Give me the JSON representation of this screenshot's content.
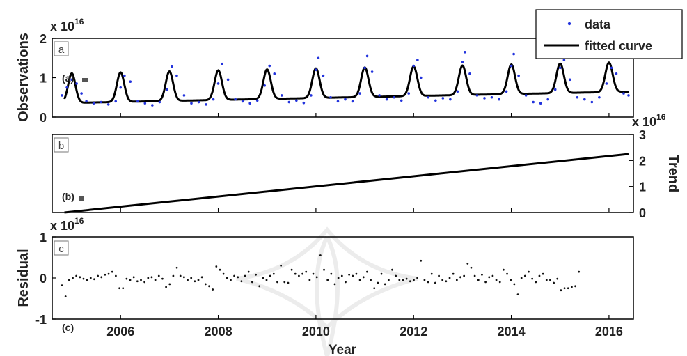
{
  "figure": {
    "x_axis_label": "Year",
    "x_ticks": [
      "2006",
      "2008",
      "2010",
      "2012",
      "2014",
      "2016"
    ],
    "x_tick_values": [
      2006,
      2008,
      2010,
      2012,
      2014,
      2016
    ],
    "x_range": [
      2004.6,
      2016.5
    ],
    "annotations": [
      "(a)",
      "(b)",
      "(c)"
    ]
  },
  "chart_data": [
    {
      "type": "scatter",
      "panel_label": "a",
      "ylabel": "Observations",
      "scale_label": "x 10",
      "scale_exp": "16",
      "y_multiplier": 1e+16,
      "ylim": [
        0,
        2
      ],
      "y_ticks": [
        "0",
        "1",
        "2"
      ],
      "y_tick_values": [
        0,
        1,
        2
      ],
      "legend_position": "top-right",
      "series": [
        {
          "name": "data",
          "marker": "dot",
          "color": "#2233dd"
        },
        {
          "name": "fitted curve",
          "marker": "line",
          "color": "#000000"
        }
      ],
      "model": {
        "base": 0.35,
        "trend_per_year": 0.025,
        "peak_amp": 0.75,
        "peak_phase": 0.0,
        "peak_width": 0.075
      },
      "data_points": [
        [
          2004.8,
          0.55
        ],
        [
          2004.9,
          0.75
        ],
        [
          2005.0,
          0.95
        ],
        [
          2005.1,
          0.85
        ],
        [
          2005.2,
          0.6
        ],
        [
          2005.3,
          0.4
        ],
        [
          2005.45,
          0.35
        ],
        [
          2005.6,
          0.38
        ],
        [
          2005.75,
          0.32
        ],
        [
          2005.9,
          0.4
        ],
        [
          2006.0,
          0.75
        ],
        [
          2006.08,
          1.05
        ],
        [
          2006.2,
          0.9
        ],
        [
          2006.35,
          0.4
        ],
        [
          2006.5,
          0.35
        ],
        [
          2006.65,
          0.3
        ],
        [
          2006.8,
          0.38
        ],
        [
          2006.95,
          0.7
        ],
        [
          2007.05,
          1.28
        ],
        [
          2007.15,
          1.05
        ],
        [
          2007.3,
          0.55
        ],
        [
          2007.45,
          0.35
        ],
        [
          2007.6,
          0.38
        ],
        [
          2007.75,
          0.32
        ],
        [
          2007.9,
          0.45
        ],
        [
          2008.0,
          0.85
        ],
        [
          2008.08,
          1.35
        ],
        [
          2008.2,
          0.95
        ],
        [
          2008.35,
          0.45
        ],
        [
          2008.5,
          0.4
        ],
        [
          2008.65,
          0.35
        ],
        [
          2008.8,
          0.42
        ],
        [
          2008.95,
          0.8
        ],
        [
          2009.05,
          1.3
        ],
        [
          2009.15,
          1.1
        ],
        [
          2009.3,
          0.55
        ],
        [
          2009.45,
          0.38
        ],
        [
          2009.6,
          0.42
        ],
        [
          2009.75,
          0.36
        ],
        [
          2009.9,
          0.55
        ],
        [
          2010.0,
          1.2
        ],
        [
          2010.05,
          1.5
        ],
        [
          2010.15,
          1.05
        ],
        [
          2010.3,
          0.5
        ],
        [
          2010.45,
          0.4
        ],
        [
          2010.6,
          0.45
        ],
        [
          2010.75,
          0.4
        ],
        [
          2010.9,
          0.6
        ],
        [
          2011.0,
          1.25
        ],
        [
          2011.05,
          1.55
        ],
        [
          2011.15,
          1.15
        ],
        [
          2011.3,
          0.55
        ],
        [
          2011.45,
          0.45
        ],
        [
          2011.6,
          0.5
        ],
        [
          2011.75,
          0.42
        ],
        [
          2011.9,
          0.6
        ],
        [
          2012.0,
          1.3
        ],
        [
          2012.08,
          1.45
        ],
        [
          2012.15,
          1.0
        ],
        [
          2012.3,
          0.5
        ],
        [
          2012.45,
          0.42
        ],
        [
          2012.6,
          0.48
        ],
        [
          2012.75,
          0.45
        ],
        [
          2012.9,
          0.65
        ],
        [
          2013.0,
          1.4
        ],
        [
          2013.05,
          1.65
        ],
        [
          2013.15,
          1.1
        ],
        [
          2013.3,
          0.55
        ],
        [
          2013.45,
          0.48
        ],
        [
          2013.6,
          0.5
        ],
        [
          2013.75,
          0.45
        ],
        [
          2013.9,
          0.65
        ],
        [
          2014.0,
          1.3
        ],
        [
          2014.05,
          1.6
        ],
        [
          2014.15,
          1.05
        ],
        [
          2014.3,
          0.55
        ],
        [
          2014.45,
          0.38
        ],
        [
          2014.6,
          0.35
        ],
        [
          2014.75,
          0.45
        ],
        [
          2014.9,
          0.7
        ],
        [
          2015.0,
          1.25
        ],
        [
          2015.08,
          1.45
        ],
        [
          2015.2,
          0.95
        ],
        [
          2015.35,
          0.5
        ],
        [
          2015.5,
          0.45
        ],
        [
          2015.65,
          0.38
        ],
        [
          2015.8,
          0.5
        ],
        [
          2015.95,
          0.85
        ],
        [
          2016.05,
          1.25
        ],
        [
          2016.15,
          1.1
        ],
        [
          2016.3,
          0.6
        ],
        [
          2016.4,
          0.55
        ]
      ]
    },
    {
      "type": "line",
      "panel_label": "b",
      "ylabel": "Trend",
      "scale_label": "x 10",
      "scale_exp": "16",
      "y_multiplier": 1e+16,
      "ylim": [
        0,
        3
      ],
      "y_ticks": [
        "0",
        "1",
        "2",
        "3"
      ],
      "y_tick_values": [
        0,
        1,
        2,
        3
      ],
      "x": [
        2004.85,
        2016.4
      ],
      "values": [
        0.0,
        2.25
      ]
    },
    {
      "type": "scatter",
      "panel_label": "c",
      "ylabel": "Residual",
      "scale_label": "x 10",
      "scale_exp": "16",
      "y_multiplier": 1e+16,
      "ylim": [
        -1,
        1
      ],
      "y_ticks": [
        "-1",
        "0",
        "1"
      ],
      "y_tick_values": [
        -1,
        0,
        1
      ],
      "x_start": 2004.8,
      "x_step": 0.0735,
      "values": [
        -0.18,
        -0.45,
        -0.05,
        0.0,
        0.05,
        0.02,
        -0.02,
        -0.05,
        0.0,
        -0.03,
        0.05,
        0.02,
        0.08,
        0.1,
        0.15,
        0.05,
        -0.25,
        -0.25,
        -0.02,
        -0.05,
        0.02,
        -0.08,
        -0.05,
        -0.1,
        0.0,
        0.02,
        -0.05,
        0.05,
        -0.02,
        -0.22,
        -0.15,
        0.05,
        0.25,
        0.05,
        0.02,
        -0.05,
        0.0,
        -0.08,
        -0.05,
        0.02,
        -0.15,
        -0.2,
        -0.28,
        0.28,
        0.2,
        0.1,
        0.0,
        -0.05,
        0.05,
        0.02,
        -0.08,
        0.05,
        0.15,
        -0.1,
        0.08,
        -0.2,
        0.0,
        -0.05,
        0.05,
        0.1,
        -0.1,
        0.3,
        -0.1,
        -0.12,
        0.2,
        0.1,
        0.05,
        0.1,
        0.15,
        -0.05,
        0.1,
        0.02,
        0.55,
        0.2,
        -0.05,
        0.1,
        -0.15,
        0.0,
        0.05,
        -0.1,
        0.08,
        0.05,
        0.1,
        -0.05,
        0.02,
        0.15,
        -0.05,
        -0.25,
        -0.12,
        0.1,
        -0.15,
        -0.05,
        0.2,
        0.05,
        -0.05,
        -0.05,
        -0.02,
        -0.08,
        -0.05,
        0.0,
        0.42,
        -0.05,
        -0.1,
        0.1,
        -0.12,
        0.05,
        -0.05,
        -0.08,
        0.0,
        0.1,
        -0.05,
        0.02,
        0.05,
        0.35,
        0.25,
        0.05,
        -0.05,
        0.08,
        -0.1,
        0.02,
        0.05,
        -0.05,
        -0.1,
        0.2,
        0.1,
        -0.05,
        -0.15,
        -0.4,
        0.0,
        0.05,
        0.15,
        -0.02,
        -0.1,
        0.05,
        0.1,
        -0.05,
        -0.05,
        -0.12,
        -0.02,
        -0.3,
        -0.25,
        -0.25,
        -0.22,
        -0.2,
        0.15
      ]
    }
  ]
}
